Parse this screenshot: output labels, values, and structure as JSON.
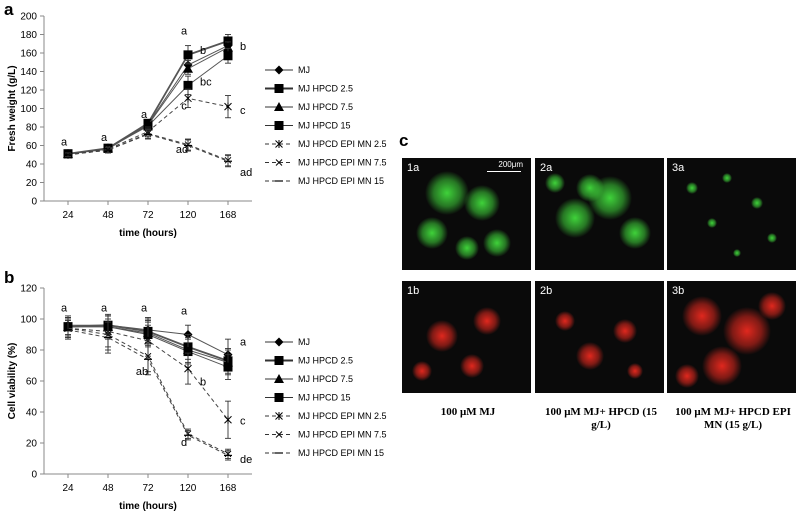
{
  "panels": {
    "a": "a",
    "b": "b",
    "c": "c"
  },
  "chart_data": [
    {
      "type": "line",
      "panel": "a",
      "ylabel": "Fresh weight (g/L)",
      "xlabel": "time (hours)",
      "x": [
        "24",
        "48",
        "72",
        "120",
        "168"
      ],
      "yticks": [
        "0",
        "20",
        "40",
        "60",
        "80",
        "100",
        "120",
        "140",
        "160",
        "180",
        "200"
      ],
      "ylim": [
        0,
        200
      ],
      "series": [
        {
          "name": "MJ",
          "values": [
            51,
            56,
            83,
            147,
            168
          ],
          "err": [
            2,
            3,
            3,
            5,
            6
          ],
          "marker": "diamond",
          "style": "solid"
        },
        {
          "name": "MJ HPCD 2.5",
          "values": [
            51,
            57,
            84,
            158,
            173
          ],
          "err": [
            2,
            3,
            3,
            10,
            7
          ],
          "marker": "square",
          "style": "solid"
        },
        {
          "name": "MJ HPCD 7.5",
          "values": [
            51,
            57,
            82,
            143,
            166
          ],
          "err": [
            2,
            3,
            3,
            6,
            6
          ],
          "marker": "triangle",
          "style": "solid"
        },
        {
          "name": "MJ HPCD 15",
          "values": [
            51,
            57,
            81,
            125,
            157
          ],
          "err": [
            2,
            3,
            3,
            10,
            8
          ],
          "marker": "square",
          "style": "solid"
        },
        {
          "name": "MJ HPCD EPI MN 2.5",
          "values": [
            50,
            56,
            75,
            111,
            102
          ],
          "err": [
            2,
            3,
            5,
            10,
            12
          ],
          "marker": "star",
          "style": "dashed"
        },
        {
          "name": "MJ HPCD EPI MN 7.5",
          "values": [
            50,
            55,
            73,
            61,
            44
          ],
          "err": [
            2,
            3,
            5,
            6,
            6
          ],
          "marker": "x",
          "style": "dashed"
        },
        {
          "name": "MJ HPCD EPI MN 15",
          "values": [
            50,
            55,
            72,
            60,
            43
          ],
          "err": [
            2,
            3,
            5,
            6,
            6
          ],
          "marker": "dash",
          "style": "dashed"
        }
      ],
      "annotations": [
        {
          "text": "a",
          "x": "24",
          "y": 60
        },
        {
          "text": "a",
          "x": "48",
          "y": 65
        },
        {
          "text": "a",
          "x": "72",
          "y": 90
        },
        {
          "text": "b",
          "x": "120",
          "y": 159
        },
        {
          "text": "a",
          "x": "120",
          "y": 180
        },
        {
          "text": "bc",
          "x": "120",
          "y": 125
        },
        {
          "text": "c",
          "x": "120",
          "y": 99
        },
        {
          "text": "ad",
          "x": "120",
          "y": 52
        },
        {
          "text": "b",
          "x": "168",
          "y": 163
        },
        {
          "text": "c",
          "x": "168",
          "y": 94
        },
        {
          "text": "ad",
          "x": "168",
          "y": 27
        }
      ]
    },
    {
      "type": "line",
      "panel": "b",
      "ylabel": "Cell viability (%)",
      "xlabel": "time (hours)",
      "x": [
        "24",
        "48",
        "72",
        "120",
        "168"
      ],
      "yticks": [
        "0",
        "20",
        "40",
        "60",
        "80",
        "100",
        "120"
      ],
      "ylim": [
        0,
        120
      ],
      "series": [
        {
          "name": "MJ",
          "values": [
            96,
            96,
            93,
            90,
            77
          ],
          "err": [
            6,
            6,
            8,
            6,
            10
          ],
          "marker": "diamond",
          "style": "solid"
        },
        {
          "name": "MJ HPCD 2.5",
          "values": [
            95,
            96,
            92,
            82,
            73
          ],
          "err": [
            6,
            6,
            8,
            8,
            8
          ],
          "marker": "square",
          "style": "solid"
        },
        {
          "name": "MJ HPCD 7.5",
          "values": [
            95,
            95,
            91,
            80,
            72
          ],
          "err": [
            6,
            7,
            8,
            8,
            8
          ],
          "marker": "triangle",
          "style": "solid"
        },
        {
          "name": "MJ HPCD 15",
          "values": [
            95,
            95,
            90,
            79,
            69
          ],
          "err": [
            6,
            8,
            8,
            8,
            8
          ],
          "marker": "square",
          "style": "solid"
        },
        {
          "name": "MJ HPCD EPI MN 2.5",
          "values": [
            94,
            92,
            86,
            68,
            35
          ],
          "err": [
            6,
            10,
            10,
            10,
            12
          ],
          "marker": "star",
          "style": "dashed"
        },
        {
          "name": "MJ HPCD EPI MN 7.5",
          "values": [
            94,
            90,
            76,
            26,
            13
          ],
          "err": [
            6,
            10,
            10,
            3,
            3
          ],
          "marker": "x",
          "style": "dashed"
        },
        {
          "name": "MJ HPCD EPI MN 15",
          "values": [
            93,
            88,
            74,
            25,
            12
          ],
          "err": [
            6,
            10,
            10,
            3,
            3
          ],
          "marker": "dash",
          "style": "dashed"
        }
      ],
      "annotations": [
        {
          "text": "a",
          "x": "24",
          "y": 105
        },
        {
          "text": "a",
          "x": "48",
          "y": 105
        },
        {
          "text": "a",
          "x": "72",
          "y": 105
        },
        {
          "text": "a",
          "x": "120",
          "y": 103
        },
        {
          "text": "a",
          "x": "168",
          "y": 83
        },
        {
          "text": "ab",
          "x": "72",
          "y": 64
        },
        {
          "text": "b",
          "x": "120",
          "y": 57
        },
        {
          "text": "c",
          "x": "168",
          "y": 32
        },
        {
          "text": "d",
          "x": "120",
          "y": 18
        },
        {
          "text": "de",
          "x": "168",
          "y": 7
        }
      ]
    }
  ],
  "micrographs": {
    "labels": [
      "1a",
      "2a",
      "3a",
      "1b",
      "2b",
      "3b"
    ],
    "scale_bar": "200μm",
    "captions": [
      "100 μM MJ",
      "100 μM MJ+ HPCD (15 g/L)",
      "100 μM MJ+ HPCD  EPI MN (15 g/L)"
    ],
    "colors": {
      "green": "#3fd23a",
      "red": "#e0281e",
      "bg": "#0a0a0a"
    }
  }
}
